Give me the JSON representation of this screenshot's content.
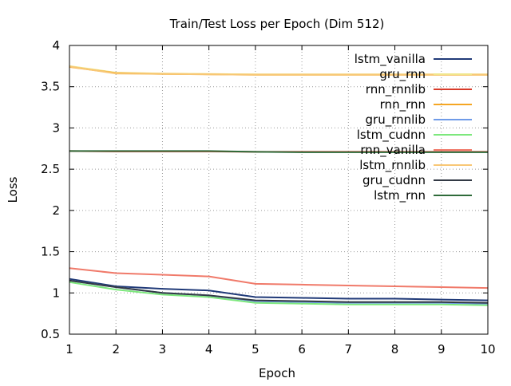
{
  "chart_data": {
    "type": "line",
    "title": "Train/Test Loss per Epoch (Dim 512)",
    "xlabel": "Epoch",
    "ylabel": "Loss",
    "xlim": [
      1,
      10
    ],
    "ylim": [
      0.5,
      4
    ],
    "grid": true,
    "legend_position": "top-right",
    "xticks": [
      1,
      2,
      3,
      4,
      5,
      6,
      7,
      8,
      9,
      10
    ],
    "yticks": [
      0.5,
      1,
      1.5,
      2,
      2.5,
      3,
      3.5,
      4
    ],
    "xtick_labels": [
      "1",
      "2",
      "3",
      "4",
      "5",
      "6",
      "7",
      "8",
      "9",
      "10"
    ],
    "ytick_labels": [
      "0.5",
      "1",
      "1.5",
      "2",
      "2.5",
      "3",
      "3.5",
      "4"
    ],
    "x": [
      1,
      2,
      3,
      4,
      5,
      6,
      7,
      8,
      9,
      10
    ],
    "series": [
      {
        "name": "lstm_vanilla",
        "color": "#203a78",
        "values": [
          1.17,
          1.08,
          1.05,
          1.03,
          0.95,
          0.94,
          0.93,
          0.93,
          0.92,
          0.91
        ]
      },
      {
        "name": "gru_rnn",
        "color": "#f0e68c",
        "values": [
          3.75,
          3.67,
          3.66,
          3.655,
          3.65,
          3.65,
          3.65,
          3.65,
          3.65,
          3.65
        ]
      },
      {
        "name": "rnn_rnnlib",
        "color": "#d83b2a",
        "values": [
          2.72,
          2.715,
          2.715,
          2.715,
          2.71,
          2.71,
          2.71,
          2.71,
          2.71,
          2.71
        ]
      },
      {
        "name": "rnn_rnn",
        "color": "#f5a623",
        "values": [
          3.74,
          3.665,
          3.655,
          3.65,
          3.645,
          3.645,
          3.645,
          3.645,
          3.645,
          3.645
        ]
      },
      {
        "name": "gru_rnnlib",
        "color": "#6f9be8",
        "values": [
          1.15,
          1.07,
          1.0,
          0.97,
          0.9,
          0.89,
          0.88,
          0.88,
          0.88,
          0.87
        ]
      },
      {
        "name": "lstm_cudnn",
        "color": "#7de87d",
        "values": [
          1.13,
          1.04,
          0.98,
          0.95,
          0.88,
          0.87,
          0.86,
          0.86,
          0.86,
          0.85
        ]
      },
      {
        "name": "rnn_vanilla",
        "color": "#f07a6a",
        "values": [
          1.3,
          1.24,
          1.22,
          1.2,
          1.11,
          1.1,
          1.09,
          1.08,
          1.07,
          1.06
        ]
      },
      {
        "name": "lstm_rnnlib",
        "color": "#f8c776",
        "values": [
          3.745,
          3.66,
          3.655,
          3.65,
          3.645,
          3.645,
          3.645,
          3.645,
          3.645,
          3.645
        ]
      },
      {
        "name": "gru_cudnn",
        "color": "#333a45",
        "values": [
          1.15,
          1.07,
          1.0,
          0.97,
          0.91,
          0.9,
          0.89,
          0.89,
          0.89,
          0.88
        ]
      },
      {
        "name": "lstm_rnn",
        "color": "#2f6b3a",
        "values": [
          2.72,
          2.72,
          2.72,
          2.72,
          2.71,
          2.705,
          2.705,
          2.705,
          2.705,
          2.705
        ]
      }
    ]
  }
}
